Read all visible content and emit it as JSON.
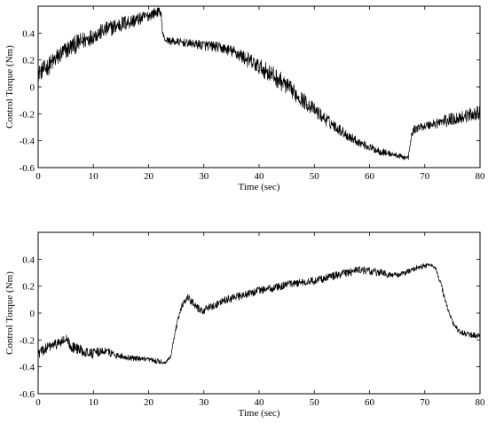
{
  "chart_data": [
    {
      "type": "line",
      "title": "",
      "xlabel": "Time (sec)",
      "ylabel": "Control Torque (Nm)",
      "xlim": [
        0,
        80
      ],
      "ylim": [
        -0.6,
        0.6
      ],
      "xticks": [
        0,
        10,
        20,
        30,
        40,
        50,
        60,
        70,
        80
      ],
      "yticks": [
        -0.6,
        -0.4,
        -0.2,
        0,
        0.2,
        0.4
      ],
      "ytick_labels": [
        "-0.6",
        "-0.4",
        "-0.2",
        "0",
        "0.2",
        "0.4"
      ],
      "grid": false,
      "series": [
        {
          "color": "#000000",
          "x": [
            0,
            2,
            4,
            6,
            8,
            10,
            12,
            14,
            16,
            18,
            20,
            21,
            22,
            22.3,
            22.5,
            23,
            24,
            26,
            28,
            30,
            32,
            34,
            36,
            38,
            40,
            42,
            44,
            46,
            48,
            50,
            52,
            54,
            56,
            58,
            60,
            62,
            64,
            66,
            67,
            67.3,
            67.6,
            68,
            69,
            70,
            72,
            74,
            76,
            78,
            80
          ],
          "y": [
            0.1,
            0.16,
            0.24,
            0.3,
            0.34,
            0.38,
            0.42,
            0.45,
            0.48,
            0.5,
            0.53,
            0.55,
            0.56,
            0.54,
            0.4,
            0.35,
            0.34,
            0.33,
            0.32,
            0.31,
            0.3,
            0.28,
            0.25,
            0.2,
            0.15,
            0.1,
            0.04,
            -0.03,
            -0.1,
            -0.17,
            -0.24,
            -0.3,
            -0.36,
            -0.41,
            -0.45,
            -0.48,
            -0.5,
            -0.52,
            -0.53,
            -0.45,
            -0.36,
            -0.32,
            -0.3,
            -0.29,
            -0.27,
            -0.25,
            -0.23,
            -0.21,
            -0.19
          ],
          "noise": [
            0.06,
            0.07,
            0.07,
            0.07,
            0.07,
            0.06,
            0.06,
            0.06,
            0.06,
            0.05,
            0.04,
            0.04,
            0.03,
            0.02,
            0.02,
            0.02,
            0.03,
            0.03,
            0.03,
            0.04,
            0.04,
            0.04,
            0.05,
            0.06,
            0.06,
            0.07,
            0.07,
            0.06,
            0.06,
            0.05,
            0.05,
            0.04,
            0.04,
            0.03,
            0.03,
            0.03,
            0.02,
            0.02,
            0.02,
            0.02,
            0.02,
            0.03,
            0.03,
            0.03,
            0.04,
            0.05,
            0.05,
            0.05,
            0.05
          ]
        }
      ]
    },
    {
      "type": "line",
      "title": "",
      "xlabel": "Time (sec)",
      "ylabel": "Control Torque (Nm)",
      "xlim": [
        0,
        80
      ],
      "ylim": [
        -0.6,
        0.6
      ],
      "xticks": [
        0,
        10,
        20,
        30,
        40,
        50,
        60,
        70,
        80
      ],
      "yticks": [
        -0.6,
        -0.4,
        -0.2,
        0,
        0.2,
        0.4
      ],
      "ytick_labels": [
        "-0.6",
        "-0.4",
        "-0.2",
        "0",
        "0.2",
        "0.4"
      ],
      "grid": false,
      "series": [
        {
          "color": "#000000",
          "x": [
            0,
            2,
            4,
            5,
            6,
            8,
            10,
            12,
            14,
            16,
            18,
            20,
            22,
            23,
            24,
            25,
            26,
            27,
            28,
            29,
            30,
            32,
            34,
            36,
            38,
            40,
            42,
            44,
            46,
            48,
            50,
            52,
            54,
            56,
            58,
            60,
            62,
            64,
            66,
            68,
            70,
            71,
            72,
            73,
            74,
            75,
            76,
            77,
            78,
            80
          ],
          "y": [
            -0.3,
            -0.25,
            -0.22,
            -0.2,
            -0.25,
            -0.28,
            -0.3,
            -0.28,
            -0.31,
            -0.33,
            -0.34,
            -0.35,
            -0.36,
            -0.37,
            -0.32,
            -0.1,
            0.05,
            0.12,
            0.08,
            0.03,
            0.02,
            0.06,
            0.1,
            0.12,
            0.14,
            0.17,
            0.18,
            0.2,
            0.22,
            0.23,
            0.24,
            0.26,
            0.28,
            0.3,
            0.32,
            0.31,
            0.3,
            0.28,
            0.29,
            0.33,
            0.35,
            0.36,
            0.33,
            0.2,
            0.05,
            -0.07,
            -0.13,
            -0.15,
            -0.16,
            -0.17
          ],
          "noise": [
            0.04,
            0.04,
            0.04,
            0.05,
            0.04,
            0.04,
            0.04,
            0.03,
            0.03,
            0.02,
            0.02,
            0.02,
            0.02,
            0.01,
            0.01,
            0.02,
            0.02,
            0.03,
            0.03,
            0.03,
            0.03,
            0.03,
            0.03,
            0.03,
            0.03,
            0.03,
            0.03,
            0.03,
            0.03,
            0.03,
            0.03,
            0.03,
            0.03,
            0.03,
            0.03,
            0.03,
            0.03,
            0.02,
            0.02,
            0.02,
            0.02,
            0.01,
            0.01,
            0.02,
            0.02,
            0.02,
            0.02,
            0.02,
            0.02,
            0.02
          ]
        }
      ]
    }
  ]
}
